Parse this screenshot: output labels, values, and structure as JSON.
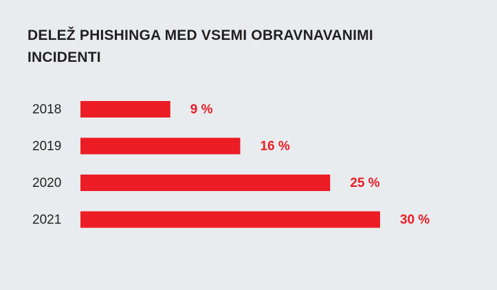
{
  "chart_data": {
    "type": "bar",
    "orientation": "horizontal",
    "title": "DELEŽ PHISHINGA MED VSEMI OBRAVNAVANIMI INCIDENTI",
    "categories": [
      "2018",
      "2019",
      "2020",
      "2021"
    ],
    "values": [
      9,
      16,
      25,
      30
    ],
    "value_labels": [
      "9 %",
      "16 %",
      "25 %",
      "30 %"
    ],
    "color": "#ec1c24"
  }
}
